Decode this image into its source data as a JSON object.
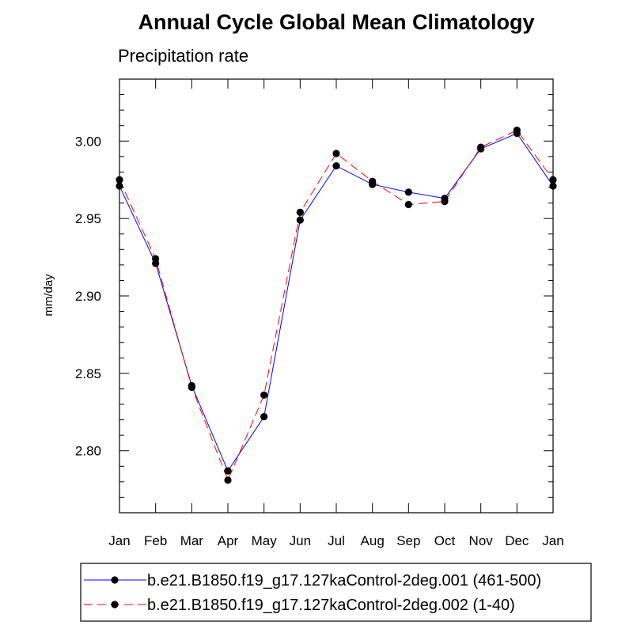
{
  "chart_data": {
    "type": "line",
    "title": "Annual Cycle Global Mean Climatology",
    "subtitle": "Precipitation rate",
    "ylabel": "mm/day",
    "xlabel": "",
    "categories": [
      "Jan",
      "Feb",
      "Mar",
      "Apr",
      "May",
      "Jun",
      "Jul",
      "Aug",
      "Sep",
      "Oct",
      "Nov",
      "Dec",
      "Jan"
    ],
    "ylim": [
      2.76,
      3.04
    ],
    "yticks": [
      2.8,
      2.85,
      2.9,
      2.95,
      3.0
    ],
    "ytick_labels": [
      "2.80",
      "2.85",
      "2.90",
      "2.95",
      "3.00"
    ],
    "grid": false,
    "legend_position": "bottom",
    "series": [
      {
        "name": "b.e21.B1850.f19_g17.127kaControl-2deg.001 (461-500)",
        "color": "#0000ff",
        "line_style": "solid",
        "marker": "filled-circle",
        "values": [
          2.971,
          2.921,
          2.842,
          2.787,
          2.822,
          2.949,
          2.984,
          2.972,
          2.967,
          2.963,
          2.995,
          3.005,
          2.971
        ]
      },
      {
        "name": "b.e21.B1850.f19_g17.127kaControl-2deg.002 (1-40)",
        "color": "#ff0000",
        "line_style": "dashed",
        "marker": "filled-circle",
        "values": [
          2.975,
          2.924,
          2.841,
          2.781,
          2.836,
          2.954,
          2.992,
          2.974,
          2.959,
          2.961,
          2.996,
          3.007,
          2.975
        ]
      }
    ]
  }
}
